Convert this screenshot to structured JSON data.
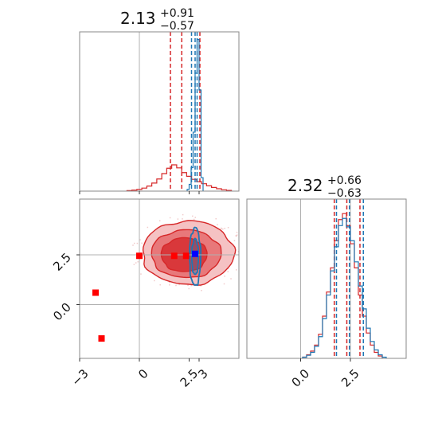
{
  "colors": {
    "red": "#d62728",
    "blue": "#1f77b4",
    "marker_red": "#ff0000",
    "marker_blue": "#0000ff",
    "truth_line": "#b0b0b0"
  },
  "titles": {
    "param1": {
      "median": "2.13",
      "upper": "+0.91",
      "lower": "−0.57"
    },
    "param2": {
      "median": "2.32",
      "upper": "+0.66",
      "lower": "−0.63"
    }
  },
  "chart_data": [
    {
      "type": "histogram",
      "panel": "marginal-param1",
      "xlim": [
        -3,
        5
      ],
      "truth_x": 0,
      "series": [
        {
          "name": "",
          "color": "red",
          "x": [
            -0.5,
            -0.25,
            0,
            0.25,
            0.5,
            0.75,
            1.0,
            1.25,
            1.5,
            1.75,
            2.0,
            2.25,
            2.5,
            2.75,
            3.0,
            3.25,
            3.5,
            3.75,
            4.0,
            4.25,
            4.5
          ],
          "values": [
            0.3,
            0.6,
            1.0,
            1.8,
            3.0,
            4.8,
            7.2,
            10.4,
            13.6,
            15.6,
            13.8,
            11.0,
            8.8,
            7.0,
            5.6,
            4.4,
            3.2,
            2.2,
            1.4,
            0.8,
            0.4
          ],
          "quantiles": [
            1.56,
            2.13,
            3.04
          ]
        },
        {
          "name": "",
          "color": "blue",
          "x": [
            2.45,
            2.55,
            2.65,
            2.75,
            2.85,
            2.95,
            3.05,
            3.15
          ],
          "values": [
            1.0,
            4.0,
            14.0,
            35.0,
            70.0,
            90.0,
            60.0,
            8.0
          ],
          "quantiles": [
            2.62,
            2.8,
            2.9
          ]
        }
      ]
    },
    {
      "type": "contour",
      "panel": "joint",
      "xlim": [
        -3,
        5
      ],
      "ylim": [
        -2.7,
        5.3
      ],
      "truth_x": 0,
      "truth_y": [
        0,
        2.5
      ],
      "x_ticks": [
        "−3",
        "0",
        "2.5",
        "3"
      ],
      "y_ticks": [
        "0.0",
        "2.5"
      ],
      "red_levels": [
        {
          "cx": 2.45,
          "cy": 2.6,
          "rx": 2.3,
          "ry": 1.6
        },
        {
          "cx": 2.35,
          "cy": 2.55,
          "rx": 1.75,
          "ry": 1.2
        },
        {
          "cx": 2.25,
          "cy": 2.5,
          "rx": 1.15,
          "ry": 0.85
        }
      ],
      "blue_levels": [
        {
          "cx": 2.8,
          "cy": 2.4,
          "rx": 0.28,
          "ry": 1.45
        },
        {
          "cx": 2.8,
          "cy": 2.4,
          "rx": 0.17,
          "ry": 0.9
        }
      ],
      "markers": [
        {
          "x": 0.0,
          "y": 2.45,
          "color": "marker_red"
        },
        {
          "x": 1.75,
          "y": 2.45,
          "color": "marker_red"
        },
        {
          "x": 2.35,
          "y": 2.45,
          "color": "marker_red"
        },
        {
          "x": -2.2,
          "y": 0.6,
          "color": "marker_red"
        },
        {
          "x": -1.9,
          "y": -1.7,
          "color": "marker_red"
        },
        {
          "x": 2.8,
          "y": 2.55,
          "color": "marker_blue"
        }
      ]
    },
    {
      "type": "histogram",
      "panel": "marginal-param2",
      "xlim": [
        -2.7,
        5.3
      ],
      "truth_x": [
        0,
        2.5
      ],
      "x_ticks": [
        "0.0",
        "2.5"
      ],
      "series": [
        {
          "name": "",
          "color": "red",
          "x": [
            0.2,
            0.4,
            0.6,
            0.8,
            1.0,
            1.2,
            1.4,
            1.6,
            1.8,
            2.0,
            2.2,
            2.4,
            2.6,
            2.8,
            3.0,
            3.2,
            3.4,
            3.6,
            3.8,
            4.0
          ],
          "values": [
            0.2,
            0.6,
            1.2,
            2.2,
            4.0,
            7.0,
            11.0,
            15.0,
            19.5,
            23.0,
            24.0,
            22.0,
            19.0,
            15.0,
            10.5,
            7.0,
            4.2,
            2.2,
            1.0,
            0.4
          ],
          "quantiles": [
            1.69,
            2.32,
            2.98
          ]
        },
        {
          "name": "",
          "color": "blue",
          "x": [
            0.2,
            0.4,
            0.6,
            0.8,
            1.0,
            1.2,
            1.4,
            1.6,
            1.8,
            2.0,
            2.2,
            2.4,
            2.6,
            2.8,
            3.0,
            3.2,
            3.4,
            3.6,
            3.8,
            4.0,
            4.2
          ],
          "values": [
            0.2,
            0.5,
            1.0,
            2.0,
            3.6,
            6.6,
            10.5,
            14.5,
            18.5,
            22.0,
            23.2,
            21.8,
            19.5,
            16.0,
            12.0,
            8.2,
            5.0,
            2.8,
            1.4,
            0.6,
            0.2
          ],
          "quantiles": [
            1.8,
            2.45,
            3.15
          ]
        }
      ]
    }
  ]
}
